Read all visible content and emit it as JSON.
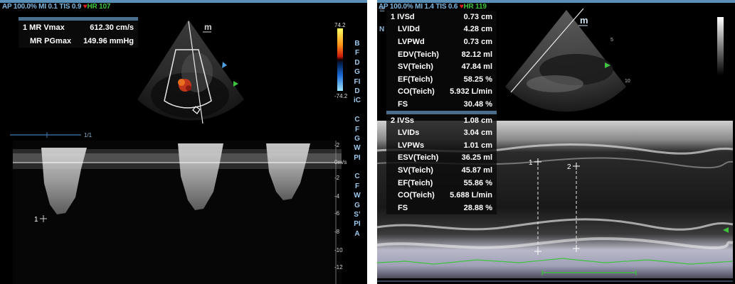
{
  "left_panel": {
    "header": {
      "prefix": "AP 100.0%  MI 0.1  TIS 0.9",
      "heart": "♥",
      "hr": "HR 107"
    },
    "measurements": [
      {
        "label": "1 MR Vmax",
        "value": "612.30 cm/s"
      },
      {
        "label": "MR PGmax",
        "value": "149.96 mmHg"
      }
    ],
    "probe_marker": "m",
    "color_scale": {
      "top": "74.2",
      "bottom": "-74.2"
    },
    "side_menu": [
      "B",
      "F",
      "D",
      "G",
      "FI",
      "D",
      "iC",
      "",
      "C",
      "F",
      "G",
      "W",
      "PI",
      "",
      "C",
      "F",
      "W",
      "G",
      "S’",
      "PI",
      "A"
    ],
    "sweep_speed": "1/1",
    "velocity_scale": [
      "-2",
      "0m/s",
      "-2",
      "-4",
      "-6",
      "-8",
      "-10",
      "-12"
    ],
    "caliper_label": "1"
  },
  "right_panel": {
    "header": {
      "prefix": "AP 100.0%  MI 1.4  TIS 0.6",
      "heart": "♥",
      "hr": "HR 119"
    },
    "probe_marker": "m",
    "measurement_groups": [
      {
        "rows": [
          {
            "label": "1 IVSd",
            "value": "0.73 cm"
          },
          {
            "label": "LVIDd",
            "value": "4.28 cm"
          },
          {
            "label": "LVPWd",
            "value": "0.73 cm"
          },
          {
            "label": "EDV(Teich)",
            "value": "82.12 ml"
          },
          {
            "label": "SV(Teich)",
            "value": "47.84 ml"
          },
          {
            "label": "EF(Teich)",
            "value": "58.25 %"
          },
          {
            "label": "CO(Teich)",
            "value": "5.932 L/min"
          },
          {
            "label": "FS",
            "value": "30.48 %"
          }
        ]
      },
      {
        "rows": [
          {
            "label": "2 IVSs",
            "value": "1.08 cm"
          },
          {
            "label": "LVIDs",
            "value": "3.04 cm"
          },
          {
            "label": "LVPWs",
            "value": "1.01 cm"
          },
          {
            "label": "ESV(Teich)",
            "value": "36.25 ml"
          },
          {
            "label": "SV(Teich)",
            "value": "45.87 ml"
          },
          {
            "label": "EF(Teich)",
            "value": "55.86 %"
          },
          {
            "label": "CO(Teich)",
            "value": "5.688 L/min"
          },
          {
            "label": "FS",
            "value": "28.88 %"
          }
        ]
      }
    ],
    "caliper_labels": [
      "1",
      "2"
    ],
    "depth_labels": [
      "5",
      "10"
    ],
    "side_menu": [
      "N"
    ]
  }
}
